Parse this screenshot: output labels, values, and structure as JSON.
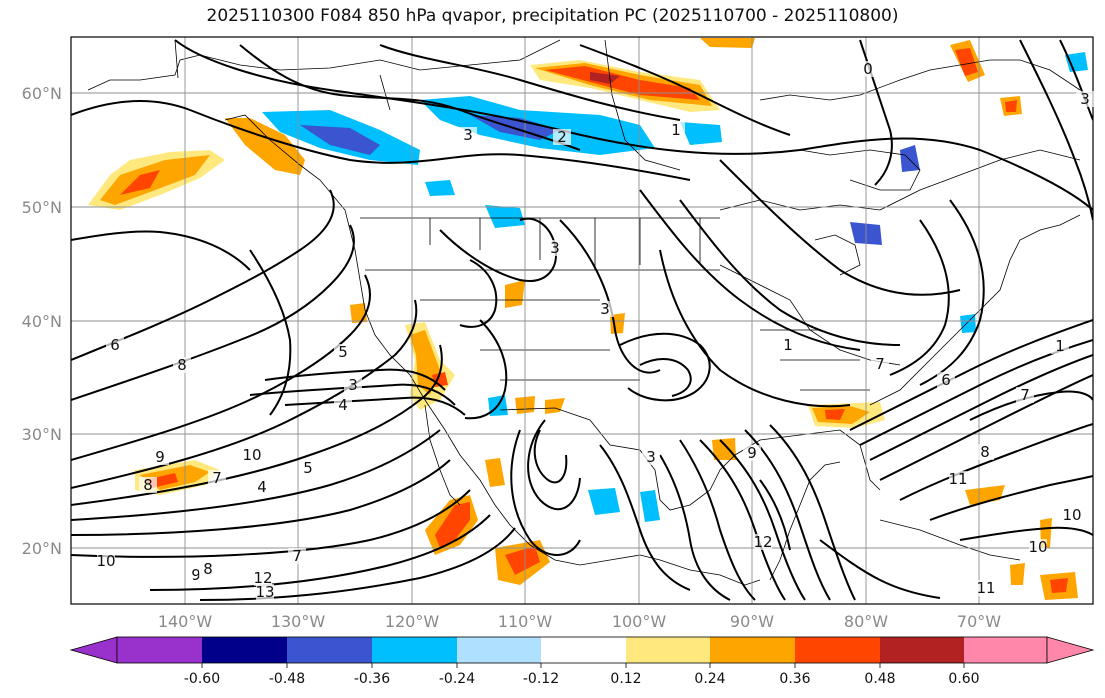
{
  "title": "2025110300 F084 850 hPa qvapor, precipitation PC (2025110700 - 2025110800)",
  "lat_labels": [
    "60°N",
    "50°N",
    "40°N",
    "30°N",
    "20°N"
  ],
  "lon_labels": [
    "140°W",
    "130°W",
    "120°W",
    "110°W",
    "100°W",
    "90°W",
    "80°W",
    "70°W"
  ],
  "colorbar": {
    "colors": [
      "#9932cc",
      "#00008b",
      "#3a55cf",
      "#00bfff",
      "#b0e0ff",
      "#ffffff",
      "#ffe97f",
      "#ffa500",
      "#ff4500",
      "#b22222",
      "#ff88aa"
    ],
    "tick_labels": [
      "-0.60",
      "-0.48",
      "-0.36",
      "-0.24",
      "-0.12",
      "0.12",
      "0.24",
      "0.36",
      "0.48",
      "0.60"
    ]
  },
  "contour_labels": [
    {
      "text": "3"
    },
    {
      "text": "2"
    },
    {
      "text": "1"
    },
    {
      "text": "0"
    },
    {
      "text": "3"
    },
    {
      "text": "6"
    },
    {
      "text": "8"
    },
    {
      "text": "5"
    },
    {
      "text": "3"
    },
    {
      "text": "4"
    },
    {
      "text": "3"
    },
    {
      "text": "3"
    },
    {
      "text": "9"
    },
    {
      "text": "10"
    },
    {
      "text": "5"
    },
    {
      "text": "7"
    },
    {
      "text": "8"
    },
    {
      "text": "4"
    },
    {
      "text": "10"
    },
    {
      "text": "13"
    },
    {
      "text": "12"
    },
    {
      "text": "9"
    },
    {
      "text": "8"
    },
    {
      "text": "7"
    },
    {
      "text": "1"
    },
    {
      "text": "6"
    },
    {
      "text": "7"
    },
    {
      "text": "8"
    },
    {
      "text": "11"
    },
    {
      "text": "10"
    },
    {
      "text": "12"
    },
    {
      "text": "10"
    },
    {
      "text": "11"
    },
    {
      "text": "9"
    },
    {
      "text": "3"
    },
    {
      "text": "1"
    },
    {
      "text": "7"
    }
  ]
}
